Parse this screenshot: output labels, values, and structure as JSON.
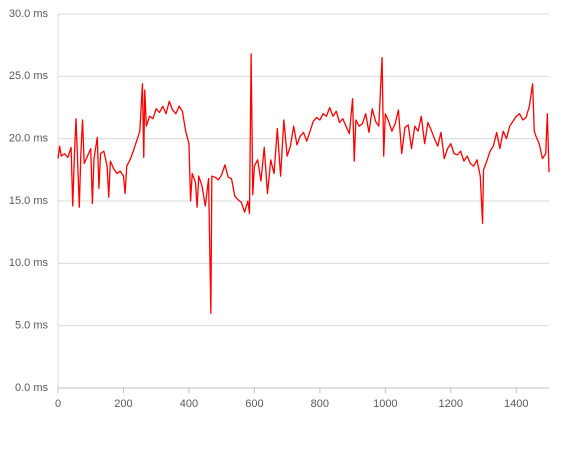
{
  "chart_data": {
    "type": "line",
    "color": "#ff0000",
    "grid": true,
    "xlim": [
      0,
      1500
    ],
    "xticks": [
      0,
      200,
      400,
      600,
      800,
      1000,
      1200,
      1400
    ],
    "ylim": [
      0,
      30
    ],
    "yticks": [
      {
        "value": 0,
        "label": "0.0 ms"
      },
      {
        "value": 5,
        "label": "5.0 ms"
      },
      {
        "value": 10,
        "label": "10.0 ms"
      },
      {
        "value": 15,
        "label": "15.0 ms"
      },
      {
        "value": 20,
        "label": "20.0 ms"
      },
      {
        "value": 25,
        "label": "25.0 ms"
      },
      {
        "value": 30,
        "label": "30.0 ms"
      }
    ],
    "x": [
      0,
      5,
      10,
      20,
      30,
      40,
      45,
      50,
      55,
      60,
      65,
      70,
      75,
      80,
      90,
      100,
      105,
      110,
      120,
      125,
      130,
      140,
      150,
      155,
      160,
      170,
      180,
      190,
      200,
      205,
      210,
      220,
      230,
      240,
      250,
      258,
      262,
      265,
      270,
      280,
      290,
      300,
      310,
      320,
      330,
      340,
      350,
      360,
      370,
      380,
      390,
      400,
      405,
      410,
      420,
      425,
      430,
      440,
      450,
      460,
      467,
      470,
      480,
      490,
      500,
      510,
      520,
      530,
      540,
      550,
      560,
      570,
      580,
      585,
      590,
      595,
      600,
      610,
      620,
      630,
      640,
      650,
      660,
      670,
      680,
      690,
      700,
      710,
      720,
      730,
      740,
      750,
      760,
      770,
      780,
      790,
      800,
      810,
      820,
      830,
      840,
      850,
      860,
      870,
      880,
      890,
      900,
      905,
      910,
      920,
      930,
      940,
      950,
      960,
      970,
      980,
      990,
      995,
      1000,
      1010,
      1020,
      1030,
      1040,
      1050,
      1060,
      1070,
      1080,
      1090,
      1100,
      1110,
      1120,
      1130,
      1140,
      1150,
      1160,
      1170,
      1180,
      1190,
      1200,
      1210,
      1220,
      1230,
      1240,
      1250,
      1260,
      1270,
      1280,
      1290,
      1297,
      1300,
      1310,
      1320,
      1330,
      1340,
      1350,
      1360,
      1370,
      1380,
      1390,
      1400,
      1410,
      1420,
      1430,
      1440,
      1450,
      1455,
      1460,
      1470,
      1480,
      1490,
      1495,
      1500
    ],
    "values": [
      18.4,
      19.4,
      18.6,
      18.8,
      18.5,
      19.3,
      14.6,
      18.6,
      21.6,
      18.2,
      14.5,
      18.9,
      21.5,
      18.0,
      18.6,
      19.2,
      14.8,
      18.4,
      20.1,
      16.0,
      18.8,
      19.0,
      17.8,
      15.3,
      18.2,
      17.6,
      17.2,
      17.4,
      17.0,
      15.6,
      17.8,
      18.3,
      19.0,
      19.8,
      20.6,
      24.4,
      18.5,
      23.9,
      21.0,
      21.8,
      21.6,
      22.4,
      22.1,
      22.6,
      22.0,
      23.0,
      22.3,
      22.0,
      22.6,
      22.2,
      20.6,
      19.6,
      15.0,
      17.2,
      16.5,
      14.5,
      17.0,
      16.2,
      14.6,
      16.8,
      6.0,
      17.0,
      16.9,
      16.7,
      17.1,
      17.9,
      16.9,
      16.8,
      15.4,
      15.1,
      14.9,
      14.1,
      15.0,
      14.0,
      26.8,
      15.5,
      17.8,
      18.3,
      16.6,
      19.3,
      15.6,
      18.3,
      17.2,
      20.8,
      17.0,
      21.5,
      18.6,
      19.4,
      21.0,
      19.5,
      20.2,
      20.5,
      19.8,
      20.6,
      21.4,
      21.7,
      21.5,
      22.0,
      21.8,
      22.5,
      21.8,
      22.2,
      21.3,
      21.6,
      21.0,
      20.4,
      23.2,
      18.2,
      21.5,
      21.0,
      21.2,
      22.0,
      20.5,
      22.4,
      21.4,
      21.0,
      26.5,
      18.6,
      22.0,
      21.4,
      20.6,
      21.2,
      22.3,
      18.8,
      20.9,
      21.1,
      19.2,
      21.0,
      20.6,
      21.8,
      19.6,
      21.3,
      20.7,
      20.0,
      19.4,
      20.5,
      18.4,
      19.2,
      19.6,
      18.8,
      18.7,
      19.0,
      18.2,
      18.6,
      18.0,
      17.8,
      18.3,
      17.0,
      13.2,
      17.5,
      18.2,
      19.0,
      19.4,
      20.5,
      19.2,
      20.6,
      20.0,
      21.0,
      21.4,
      21.8,
      22.0,
      21.5,
      21.7,
      22.6,
      24.4,
      20.6,
      20.2,
      19.6,
      18.4,
      18.8,
      22.0,
      17.3
    ]
  }
}
